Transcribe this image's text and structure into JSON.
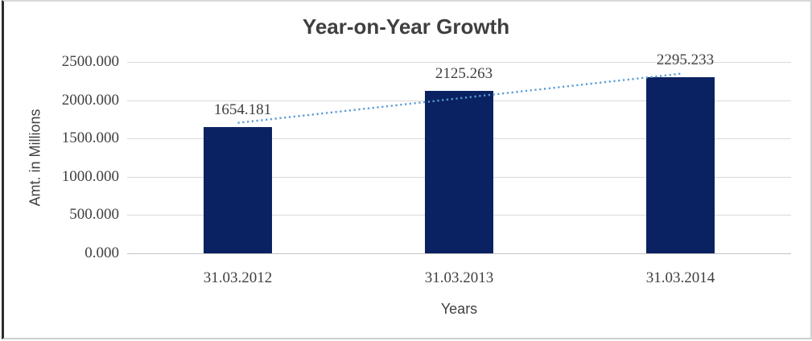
{
  "chart_data": {
    "type": "bar",
    "title": "Year-on-Year Growth",
    "xlabel": "Years",
    "ylabel": "Amt. in Millions",
    "categories": [
      "31.03.2012",
      "31.03.2013",
      "31.03.2014"
    ],
    "values": [
      1654.181,
      2125.263,
      2295.233
    ],
    "data_labels": [
      "1654.181",
      "2125.263",
      "2295.233"
    ],
    "ylim": [
      0,
      2500
    ],
    "ytick_step": 500,
    "ytick_labels": [
      "0.000",
      "500.000",
      "1000.000",
      "1500.000",
      "2000.000",
      "2500.000"
    ],
    "grid": true,
    "legend": "none",
    "trendline": {
      "type": "linear",
      "style": "dotted"
    },
    "colors": {
      "bar": "#0a2262",
      "trendline": "#5b9bd5",
      "gridline": "#d9d9d9",
      "axis_line": "#c3c3c3",
      "text": "#3f3f3f"
    }
  }
}
